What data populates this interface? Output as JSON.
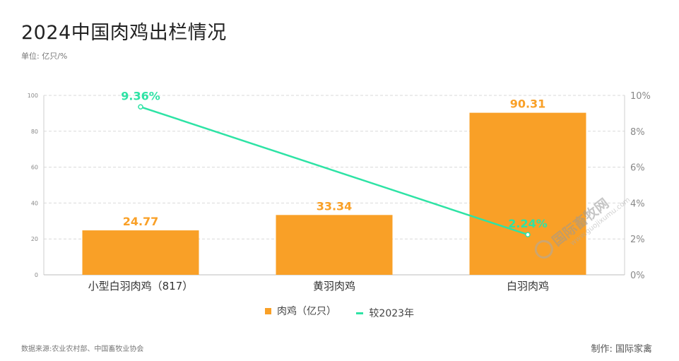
{
  "title": "2024中国肉鸡出栏情况",
  "unit_label": "单位: 亿只/%",
  "source": "数据来源:农业农村部、中国畜牧业协会",
  "maker": "制作:  国际家禽",
  "watermark": {
    "text": "国际畜牧网",
    "sub": "www.guojixumu.com"
  },
  "colors": {
    "bar": "#F9A027",
    "line": "#2EE3A5",
    "grid": "#d9d9d9",
    "axis_text": "#888888"
  },
  "chart_data": {
    "type": "bar",
    "title": "2024中国肉鸡出栏情况",
    "categories": [
      "小型白羽肉鸡（817）",
      "黄羽肉鸡",
      "白羽肉鸡"
    ],
    "series": [
      {
        "name": "肉鸡（亿只）",
        "type": "bar",
        "axis": "left",
        "values": [
          24.77,
          33.34,
          90.31
        ],
        "labels": [
          "24.77",
          "33.34",
          "90.31"
        ]
      },
      {
        "name": "较2023年",
        "type": "line",
        "axis": "right",
        "values": [
          9.36,
          null,
          2.24
        ],
        "labels": [
          "9.36%",
          "",
          "2.24%"
        ]
      }
    ],
    "y_left": {
      "min": 0,
      "max": 100,
      "ticks": [
        0,
        20,
        40,
        60,
        80,
        100
      ],
      "tick_labels": [
        "0",
        "20",
        "40",
        "60",
        "80",
        "100"
      ]
    },
    "y_right": {
      "min": 0,
      "max": 10,
      "ticks": [
        0,
        2,
        4,
        6,
        8,
        10
      ],
      "tick_labels": [
        "0%",
        "2%",
        "4%",
        "6%",
        "8%",
        "10%"
      ]
    },
    "grid": true,
    "legend_position": "bottom"
  },
  "legend": [
    {
      "label": "肉鸡（亿只）",
      "kind": "bar"
    },
    {
      "label": "较2023年",
      "kind": "line"
    }
  ]
}
